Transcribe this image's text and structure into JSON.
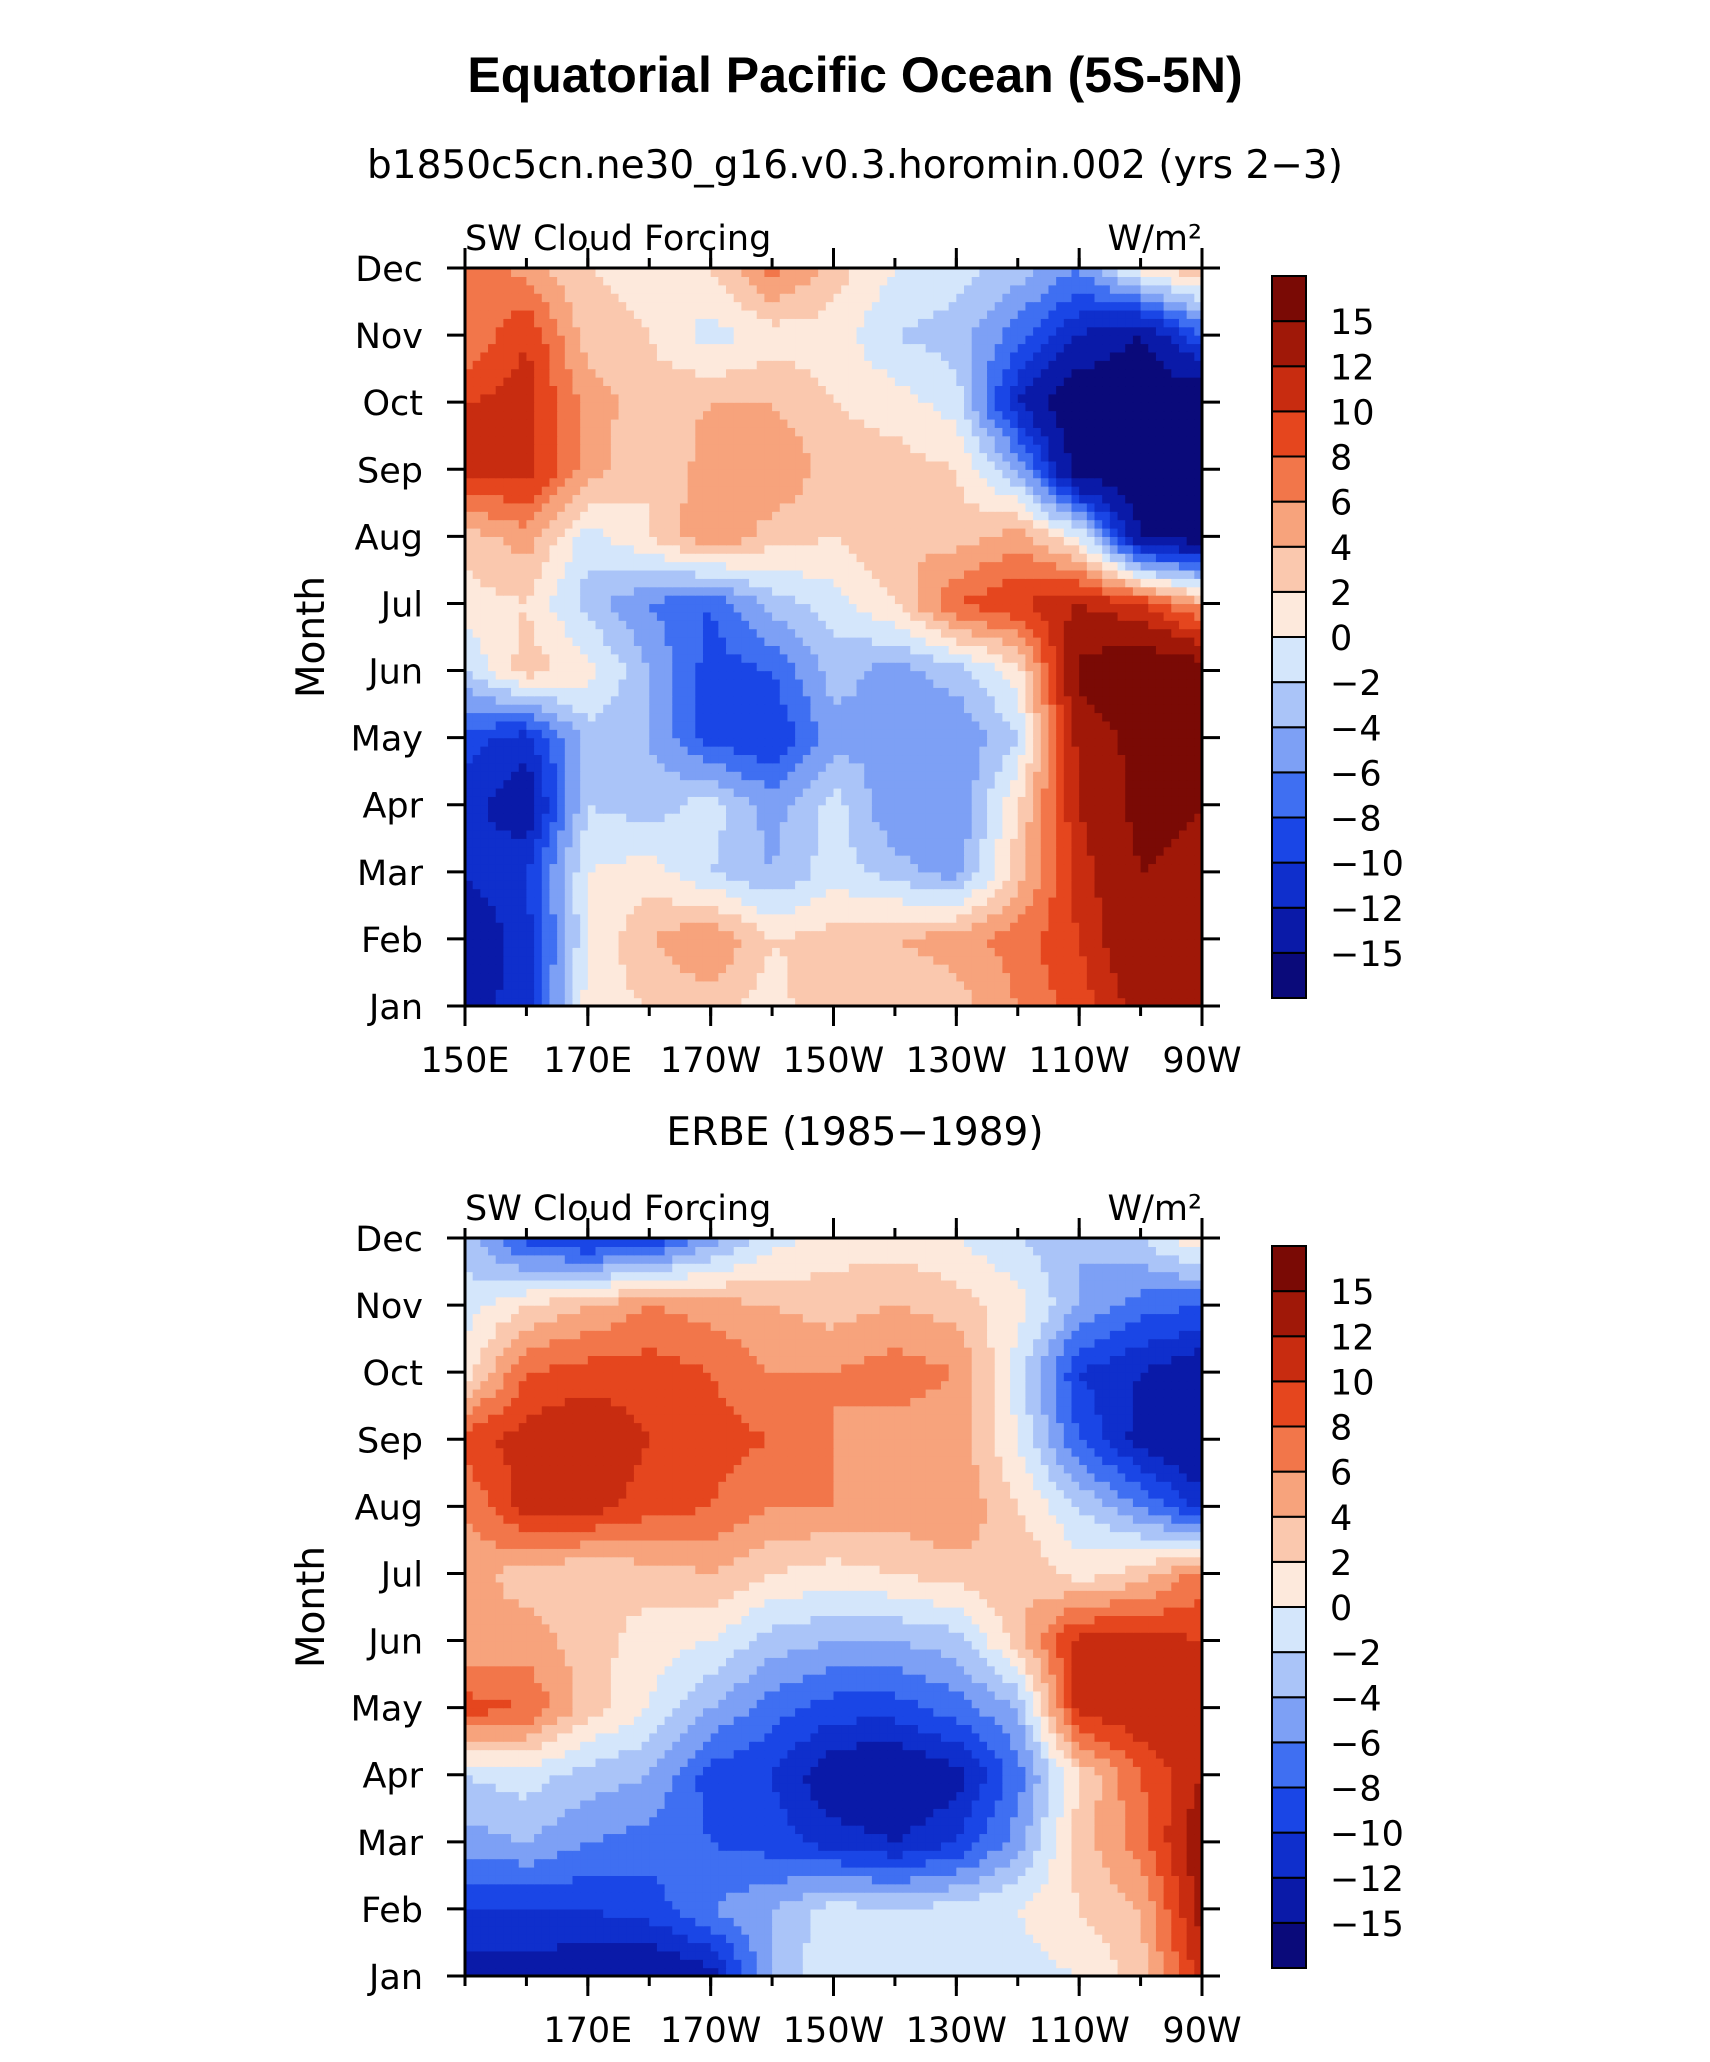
{
  "figure": {
    "title": "Equatorial Pacific Ocean (5S-5N)"
  },
  "chart_data": [
    {
      "type": "heatmap",
      "subtitle": "b1850c5cn.ne30_g16.v0.3.horomin.002 (yrs 2−3)",
      "left_label": "SW Cloud Forcing",
      "right_label": "W/m²",
      "ylabel": "Month",
      "xlabel": "",
      "x_ticks": [
        "150E",
        "170E",
        "170W",
        "150W",
        "130W",
        "110W",
        "90W"
      ],
      "x_tick_values": [
        150,
        170,
        190,
        210,
        230,
        250,
        270
      ],
      "y_ticks": [
        "Jan",
        "Feb",
        "Mar",
        "Apr",
        "May",
        "Jun",
        "Jul",
        "Aug",
        "Sep",
        "Oct",
        "Nov",
        "Dec"
      ],
      "xlim": [
        150,
        270
      ],
      "ylim": [
        1,
        12
      ],
      "x_grid": [
        150,
        160,
        170,
        180,
        190,
        200,
        210,
        220,
        230,
        240,
        250,
        260,
        270
      ],
      "values": [
        [
          -13,
          -11,
          1,
          2,
          3,
          1,
          4,
          2,
          3,
          6,
          9,
          13,
          15
        ],
        [
          -14,
          -11,
          0,
          4,
          6,
          2,
          3,
          4,
          5,
          7,
          10,
          15,
          14
        ],
        [
          -12,
          -10,
          0,
          1,
          -2,
          -4,
          -1,
          -3,
          -5,
          3,
          11,
          15,
          14
        ],
        [
          -11,
          -14,
          -2,
          -3,
          -1,
          -5,
          -1,
          -6,
          -6,
          2,
          12,
          16,
          15
        ],
        [
          -9,
          -11,
          -3,
          -4,
          -9,
          -10,
          -5,
          -4,
          -6,
          -2,
          13,
          16,
          16
        ],
        [
          -2,
          3,
          1,
          -4,
          -9,
          -8,
          -3,
          -5,
          -3,
          1,
          16,
          18,
          17
        ],
        [
          1,
          2,
          -3,
          -6,
          -8,
          -3,
          -1,
          2,
          8,
          10,
          12,
          10,
          5
        ],
        [
          3,
          5,
          -1,
          2,
          6,
          3,
          2,
          4,
          3,
          5,
          0,
          -15,
          -17
        ],
        [
          11,
          11,
          5,
          2,
          5,
          6,
          3,
          3,
          2,
          -4,
          -17,
          -18,
          -18
        ],
        [
          10,
          11,
          5,
          3,
          4,
          4,
          2,
          1,
          -1,
          -12,
          -18,
          -18,
          -18
        ],
        [
          6,
          10,
          3,
          2,
          -1,
          1,
          1,
          -2,
          -3,
          -7,
          -12,
          -15,
          -8
        ],
        [
          8,
          5,
          2,
          1,
          2,
          7,
          3,
          0,
          -1,
          -3,
          -6,
          1,
          4
        ]
      ]
    },
    {
      "type": "heatmap",
      "subtitle": "ERBE (1985−1989)",
      "left_label": "SW Cloud Forcing",
      "right_label": "W/m²",
      "ylabel": "Month",
      "xlabel": "",
      "x_ticks": [
        "170E",
        "170W",
        "150W",
        "130W",
        "110W",
        "90W"
      ],
      "x_tick_values": [
        170,
        190,
        210,
        230,
        250,
        270
      ],
      "y_ticks": [
        "Jan",
        "Feb",
        "Mar",
        "Apr",
        "May",
        "Jun",
        "Jul",
        "Aug",
        "Sep",
        "Oct",
        "Nov",
        "Dec"
      ],
      "xlim": [
        150,
        270
      ],
      "ylim": [
        1,
        12
      ],
      "x_grid": [
        150,
        160,
        170,
        180,
        190,
        200,
        210,
        220,
        230,
        240,
        250,
        260,
        270
      ],
      "values": [
        [
          -13,
          -13,
          -14,
          -15,
          -13,
          -4,
          0,
          -1,
          -2,
          -1,
          0,
          3,
          11
        ],
        [
          -10,
          -10,
          -10,
          -9,
          -6,
          -4,
          -1,
          -2,
          -1,
          0,
          2,
          4,
          13
        ],
        [
          -5,
          -4,
          -6,
          -7,
          -8,
          -9,
          -11,
          -12,
          -10,
          -5,
          3,
          7,
          14
        ],
        [
          -2,
          -1,
          -3,
          -4,
          -9,
          -10,
          -14,
          -15,
          -13,
          -7,
          2,
          8,
          12
        ],
        [
          9,
          8,
          3,
          0,
          -4,
          -7,
          -9,
          -9,
          -7,
          -4,
          11,
          12,
          11
        ],
        [
          4,
          5,
          3,
          1,
          0,
          -3,
          -4,
          -4,
          -3,
          3,
          11,
          11,
          10
        ],
        [
          5,
          3,
          2,
          3,
          4,
          2,
          1,
          2,
          3,
          4,
          1,
          3,
          7
        ],
        [
          6,
          11,
          11,
          9,
          8,
          6,
          6,
          5,
          6,
          2,
          -2,
          -6,
          -11
        ],
        [
          9,
          11,
          12,
          10,
          9,
          8,
          6,
          5,
          5,
          0,
          -8,
          -13,
          -15
        ],
        [
          1,
          8,
          9,
          9,
          8,
          6,
          6,
          7,
          6,
          -1,
          -10,
          -12,
          -14
        ],
        [
          -1,
          2,
          4,
          6,
          5,
          4,
          3,
          4,
          3,
          1,
          -4,
          -7,
          -8
        ],
        [
          -3,
          -9,
          -11,
          -10,
          -5,
          -1,
          1,
          1,
          0,
          -2,
          -4,
          -2,
          2
        ]
      ]
    }
  ],
  "colorbar": {
    "labels": [
      "15",
      "12",
      "10",
      "8",
      "6",
      "4",
      "2",
      "0",
      "−2",
      "−4",
      "−6",
      "−8",
      "−10",
      "−12",
      "−15"
    ],
    "levels": [
      -15,
      -12,
      -10,
      -8,
      -6,
      -4,
      -2,
      0,
      2,
      4,
      6,
      8,
      10,
      12,
      15
    ],
    "colors": [
      "#0a0a7a",
      "#0a1aa8",
      "#0f2fcc",
      "#1a46e6",
      "#3f6ff2",
      "#7da0f5",
      "#aac4f8",
      "#d4e6fb",
      "#fde9dc",
      "#fac8ae",
      "#f7a37c",
      "#f2764a",
      "#e5461e",
      "#c82c10",
      "#a01808",
      "#7a0a05"
    ]
  }
}
